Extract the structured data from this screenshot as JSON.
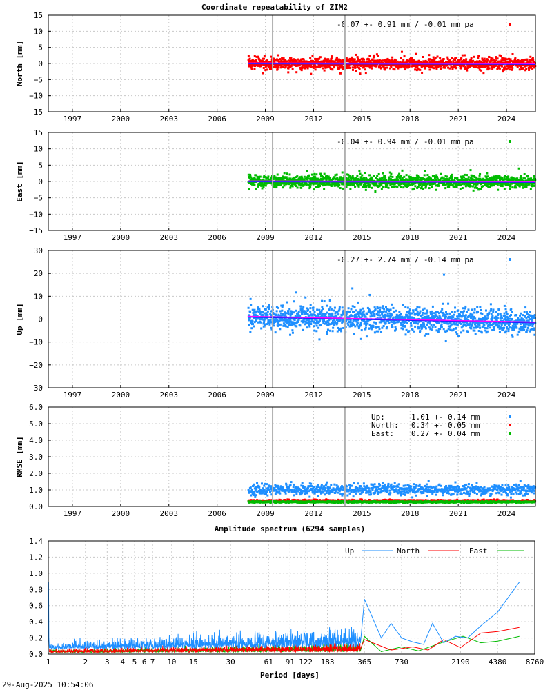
{
  "chart_data": [
    {
      "type": "scatter",
      "title": "Coordinate repeatability of ZIM2",
      "ylabel": "North [mm]",
      "ylim": [
        -15,
        15
      ],
      "yticks": [
        -15,
        -10,
        -5,
        0,
        5,
        10,
        15
      ],
      "xlim": [
        1995.5,
        2025.8
      ],
      "xticks": [
        1997,
        2000,
        2003,
        2006,
        2009,
        2012,
        2015,
        2018,
        2021,
        2024
      ],
      "series": [
        {
          "name": "North",
          "color": "#ff0000",
          "start": 2007.95,
          "end": 2025.8,
          "scatter_sd": 0.91,
          "trend": -0.01
        }
      ],
      "annotation": "-0.07 +- 0.91 mm / -0.01 mm pa",
      "events": [
        2009.45,
        2013.95
      ]
    },
    {
      "type": "scatter",
      "ylabel": "East [mm]",
      "ylim": [
        -15,
        15
      ],
      "yticks": [
        -15,
        -10,
        -5,
        0,
        5,
        10,
        15
      ],
      "xlim": [
        1995.5,
        2025.8
      ],
      "xticks": [
        1997,
        2000,
        2003,
        2006,
        2009,
        2012,
        2015,
        2018,
        2021,
        2024
      ],
      "series": [
        {
          "name": "East",
          "color": "#00bb00",
          "start": 2007.95,
          "end": 2025.8,
          "scatter_sd": 0.94,
          "trend": -0.01
        }
      ],
      "annotation": "-0.04 +- 0.94 mm / -0.01 mm pa",
      "events": [
        2009.45,
        2013.95
      ]
    },
    {
      "type": "scatter",
      "ylabel": "Up [mm]",
      "ylim": [
        -30,
        30
      ],
      "yticks": [
        -30,
        -20,
        -10,
        0,
        10,
        20,
        30
      ],
      "xlim": [
        1995.5,
        2025.8
      ],
      "xticks": [
        1997,
        2000,
        2003,
        2006,
        2009,
        2012,
        2015,
        2018,
        2021,
        2024
      ],
      "series": [
        {
          "name": "Up",
          "color": "#1e8fff",
          "start": 2007.95,
          "end": 2025.8,
          "scatter_sd": 2.74,
          "trend": -0.14
        }
      ],
      "annotation": "-0.27 +- 2.74 mm / -0.14 mm pa",
      "events": [
        2009.45,
        2013.95
      ]
    },
    {
      "type": "scatter",
      "ylabel": "RMSE [mm]",
      "ylim": [
        0,
        6
      ],
      "yticks": [
        0.0,
        1.0,
        2.0,
        3.0,
        4.0,
        5.0,
        6.0
      ],
      "ytick_labels": [
        "0.0",
        "1.0",
        "2.0",
        "3.0",
        "4.0",
        "5.0",
        "6.0"
      ],
      "xlim": [
        1995.5,
        2025.8
      ],
      "xticks": [
        1997,
        2000,
        2003,
        2006,
        2009,
        2012,
        2015,
        2018,
        2021,
        2024
      ],
      "series": [
        {
          "name": "Up",
          "color": "#1e8fff",
          "mean": 1.01,
          "sd": 0.14
        },
        {
          "name": "North",
          "color": "#ff0000",
          "mean": 0.34,
          "sd": 0.05
        },
        {
          "name": "East",
          "color": "#00bb00",
          "mean": 0.27,
          "sd": 0.04
        }
      ],
      "legend": [
        {
          "label": "Up:",
          "value": "1.01 +- 0.14 mm",
          "color": "#1e8fff"
        },
        {
          "label": "North:",
          "value": "0.34 +- 0.05 mm",
          "color": "#ff0000"
        },
        {
          "label": "East:",
          "value": "0.27 +- 0.04 mm",
          "color": "#00bb00"
        }
      ],
      "events": [
        2009.45,
        2013.95
      ]
    },
    {
      "type": "line",
      "title": "Amplitude spectrum (6294 samples)",
      "xlabel": "Period [days]",
      "xscale": "log",
      "xlim": [
        1,
        8760
      ],
      "ylim": [
        0,
        1.4
      ],
      "yticks": [
        0.0,
        0.2,
        0.4,
        0.6,
        0.8,
        1.0,
        1.2,
        1.4
      ],
      "ytick_labels": [
        "0.0",
        "0.2",
        "0.4",
        "0.6",
        "0.8",
        "1.0",
        "1.2",
        "1.4"
      ],
      "xticks": [
        1,
        2,
        3,
        4,
        5,
        6,
        7,
        10,
        15,
        30,
        61,
        91,
        122,
        183,
        365,
        730,
        2190,
        4380,
        8760
      ],
      "series": [
        {
          "name": "Up",
          "color": "#1e8fff",
          "peaks": [
            [
              1.0,
              0.89
            ],
            [
              365,
              0.68
            ],
            [
              500,
              0.2
            ],
            [
              600,
              0.38
            ],
            [
              730,
              0.2
            ],
            [
              900,
              0.15
            ],
            [
              1100,
              0.12
            ],
            [
              1300,
              0.38
            ],
            [
              1600,
              0.14
            ],
            [
              2000,
              0.22
            ],
            [
              2500,
              0.2
            ],
            [
              3200,
              0.35
            ],
            [
              4380,
              0.52
            ],
            [
              6570,
              0.89
            ]
          ]
        },
        {
          "name": "North",
          "color": "#ff0000",
          "peaks": [
            [
              365,
              0.18
            ],
            [
              600,
              0.05
            ],
            [
              900,
              0.09
            ],
            [
              1200,
              0.05
            ],
            [
              1600,
              0.18
            ],
            [
              2190,
              0.08
            ],
            [
              3200,
              0.26
            ],
            [
              4380,
              0.28
            ],
            [
              6570,
              0.33
            ]
          ]
        },
        {
          "name": "East",
          "color": "#00bb00",
          "peaks": [
            [
              365,
              0.22
            ],
            [
              500,
              0.03
            ],
            [
              730,
              0.09
            ],
            [
              1000,
              0.04
            ],
            [
              1600,
              0.15
            ],
            [
              2300,
              0.22
            ],
            [
              3200,
              0.14
            ],
            [
              4380,
              0.16
            ],
            [
              6570,
              0.22
            ]
          ]
        }
      ],
      "legend": [
        "Up",
        "North",
        "East"
      ]
    }
  ],
  "timestamp": "29-Aug-2025 10:54:06"
}
